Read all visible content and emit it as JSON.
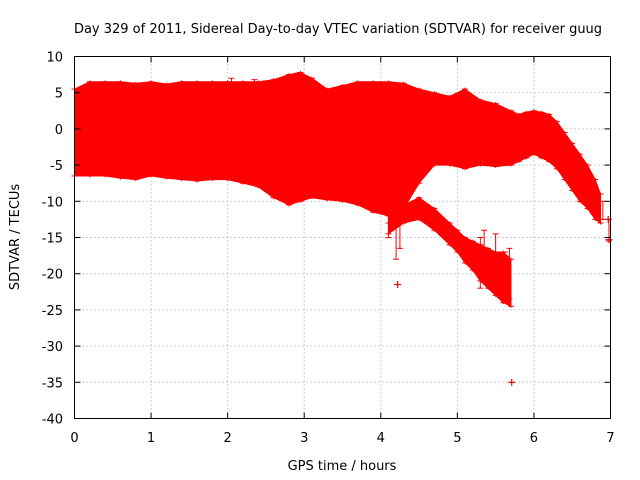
{
  "chart_data": {
    "type": "scatter",
    "title": "Day 329 of 2011, Sidereal Day-to-day VTEC variation (SDTVAR) for receiver guug",
    "xlabel": "GPS time / hours",
    "ylabel": "SDTVAR / TECUs",
    "xlim": [
      0,
      7
    ],
    "ylim": [
      -40,
      10
    ],
    "x_ticks": [
      0,
      1,
      2,
      3,
      4,
      5,
      6,
      7
    ],
    "y_ticks": [
      10,
      5,
      0,
      -5,
      -10,
      -15,
      -20,
      -25,
      -30,
      -35,
      -40
    ],
    "grid": true,
    "series_color": "#ff0000",
    "series": [
      {
        "name": "band_main",
        "x": [
          0.0,
          0.2,
          0.4,
          0.6,
          0.8,
          1.0,
          1.2,
          1.4,
          1.6,
          1.8,
          2.0,
          2.2,
          2.4,
          2.6,
          2.8,
          2.95,
          3.1,
          3.3,
          3.5,
          3.7,
          3.9,
          4.1,
          4.3,
          4.5,
          4.7,
          4.9,
          5.1,
          5.3,
          5.5,
          5.7,
          5.8,
          5.9,
          6.0,
          6.1,
          6.2,
          6.3,
          6.4,
          6.5,
          6.6,
          6.7,
          6.8,
          6.87
        ],
        "upper": [
          5.5,
          6.5,
          6.5,
          6.5,
          6.3,
          6.5,
          6.2,
          6.5,
          6.5,
          6.5,
          6.5,
          6.5,
          6.5,
          6.8,
          7.5,
          7.8,
          7.0,
          5.5,
          6.0,
          6.5,
          6.5,
          6.5,
          6.3,
          5.5,
          5.0,
          4.5,
          5.5,
          4.0,
          3.5,
          2.5,
          2.0,
          2.3,
          2.5,
          2.3,
          2.0,
          1.0,
          -0.5,
          -2.0,
          -3.5,
          -5.0,
          -7.0,
          -9.0
        ],
        "lower": [
          -6.5,
          -6.5,
          -6.5,
          -6.8,
          -7.0,
          -6.5,
          -6.8,
          -7.0,
          -7.2,
          -7.0,
          -7.0,
          -7.5,
          -8.0,
          -9.5,
          -10.5,
          -10.0,
          -9.5,
          -9.8,
          -10.0,
          -10.5,
          -11.5,
          -12.0,
          -11.0,
          -7.5,
          -5.0,
          -5.0,
          -5.5,
          -5.0,
          -5.2,
          -5.0,
          -4.5,
          -4.0,
          -3.5,
          -4.0,
          -4.5,
          -5.5,
          -7.0,
          -8.5,
          -10.0,
          -11.0,
          -12.5,
          -13.0
        ]
      },
      {
        "name": "band_descending",
        "x": [
          4.1,
          4.3,
          4.5,
          4.7,
          4.9,
          5.0,
          5.1,
          5.2,
          5.3,
          5.4,
          5.5,
          5.6,
          5.7
        ],
        "upper": [
          -12.0,
          -10.5,
          -9.5,
          -11.0,
          -13.0,
          -14.0,
          -15.0,
          -15.5,
          -16.0,
          -16.5,
          -17.0,
          -17.0,
          -18.0
        ],
        "lower": [
          -14.5,
          -13.0,
          -12.5,
          -14.0,
          -16.0,
          -17.0,
          -18.5,
          -19.5,
          -21.0,
          -22.0,
          -23.0,
          -24.0,
          -24.5
        ]
      },
      {
        "name": "spikes",
        "segments": [
          [
            4.2,
            -9.0,
            4.2,
            -18.0
          ],
          [
            4.25,
            -12.0,
            4.25,
            -16.5
          ],
          [
            4.1,
            -13.0,
            4.1,
            -15.0
          ],
          [
            5.3,
            -15.0,
            5.3,
            -22.0
          ],
          [
            5.35,
            -14.0,
            5.35,
            -21.0
          ],
          [
            5.5,
            -14.5,
            5.5,
            -21.5
          ],
          [
            5.62,
            -17.0,
            5.62,
            -24.0
          ],
          [
            5.68,
            -16.5,
            5.68,
            -23.5
          ],
          [
            6.9,
            -10.0,
            6.9,
            -12.5
          ],
          [
            6.98,
            -12.5,
            6.98,
            -15.5
          ],
          [
            2.05,
            6.0,
            2.05,
            7.0
          ],
          [
            2.35,
            6.0,
            2.35,
            6.8
          ]
        ]
      },
      {
        "name": "outliers",
        "points": [
          [
            4.22,
            -21.5
          ],
          [
            5.71,
            -35.0
          ],
          [
            6.97,
            -12.5
          ],
          [
            6.98,
            -15.3
          ]
        ]
      }
    ]
  }
}
